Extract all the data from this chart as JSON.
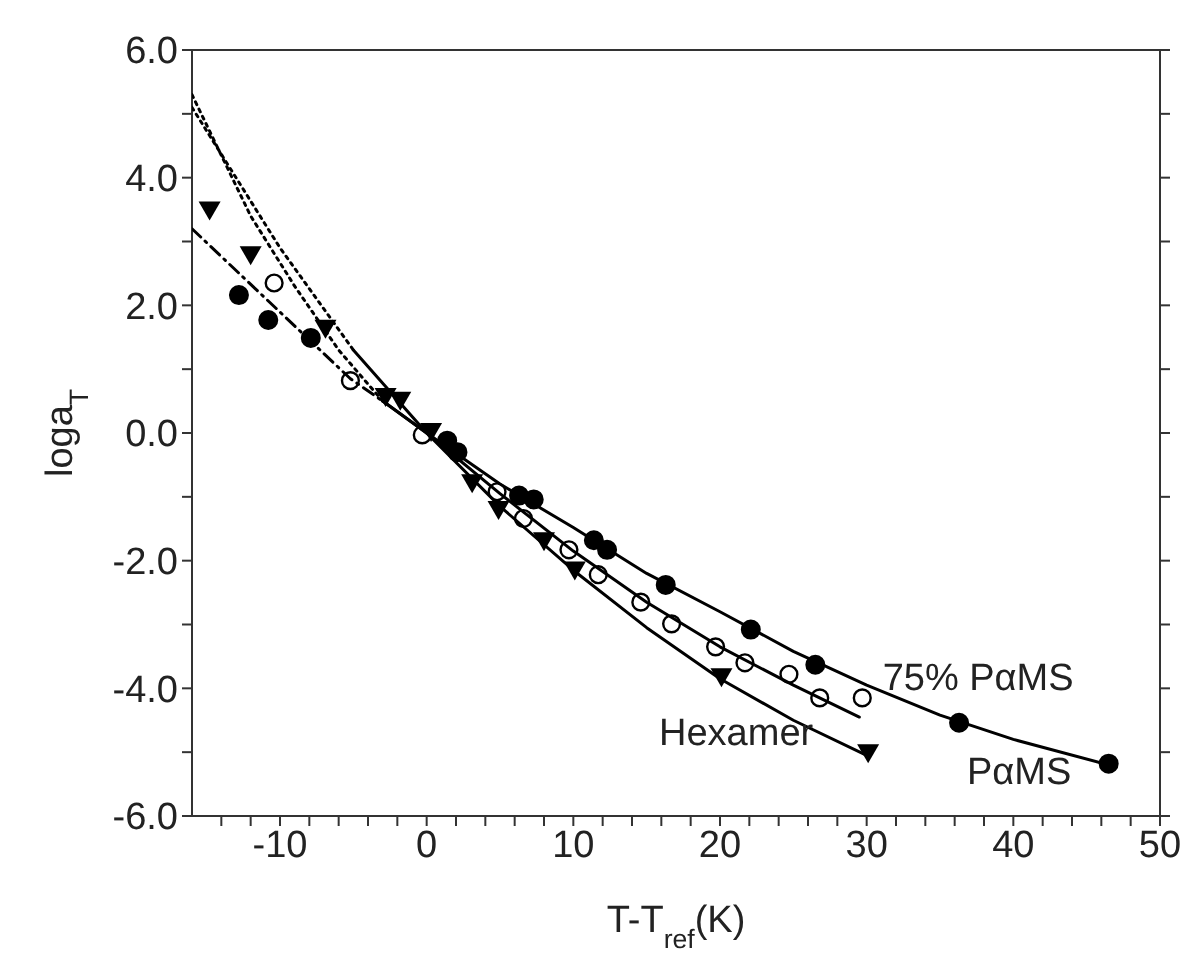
{
  "chart_data": {
    "type": "scatter",
    "xlabel": "T-T$_{ref}$(K)",
    "ylabel": "loga$_{T}$",
    "xlim": [
      -16,
      50
    ],
    "ylim": [
      -6,
      6
    ],
    "xticks": [
      {
        "value": -14,
        "label": null
      },
      {
        "value": -12,
        "label": null
      },
      -10,
      {
        "value": -8,
        "label": null
      },
      {
        "value": -6,
        "label": null
      },
      {
        "value": -4,
        "label": null
      },
      {
        "value": -2,
        "label": null
      },
      0,
      {
        "value": 2,
        "label": null
      },
      {
        "value": 4,
        "label": null
      },
      {
        "value": 6,
        "label": null
      },
      {
        "value": 8,
        "label": null
      },
      10,
      {
        "value": 12,
        "label": null
      },
      {
        "value": 14,
        "label": null
      },
      {
        "value": 16,
        "label": null
      },
      {
        "value": 18,
        "label": null
      },
      20,
      {
        "value": 22,
        "label": null
      },
      {
        "value": 24,
        "label": null
      },
      {
        "value": 26,
        "label": null
      },
      {
        "value": 28,
        "label": null
      },
      30,
      {
        "value": 32,
        "label": null
      },
      {
        "value": 34,
        "label": null
      },
      {
        "value": 36,
        "label": null
      },
      {
        "value": 38,
        "label": null
      },
      40,
      {
        "value": 42,
        "label": null
      },
      {
        "value": 44,
        "label": null
      },
      {
        "value": 46,
        "label": null
      },
      {
        "value": 48,
        "label": null
      },
      50
    ],
    "yticks": [
      {
        "value": -6,
        "label": "-6.0"
      },
      {
        "value": -5,
        "label": null
      },
      {
        "value": -4,
        "label": "-4.0"
      },
      {
        "value": -3,
        "label": null
      },
      {
        "value": -2,
        "label": "-2.0"
      },
      {
        "value": -1,
        "label": null
      },
      {
        "value": 0,
        "label": "0.0"
      },
      {
        "value": 1,
        "label": null
      },
      {
        "value": 2,
        "label": "2.0"
      },
      {
        "value": 3,
        "label": null
      },
      {
        "value": 4,
        "label": "4.0"
      },
      {
        "value": 5,
        "label": null
      },
      {
        "value": 6,
        "label": "6.0"
      }
    ],
    "grid": false,
    "legend": false,
    "series": [
      {
        "marker": "circle",
        "color": "#000000",
        "x": [
          -12.8,
          -10.8,
          -7.9,
          1.4,
          2.1,
          6.3,
          7.3,
          11.4,
          12.3,
          16.3,
          22.1,
          26.5,
          36.3,
          46.5
        ],
        "values": [
          2.16,
          1.77,
          1.49,
          -0.12,
          -0.3,
          -0.98,
          -1.04,
          -1.68,
          -1.83,
          -2.38,
          -3.08,
          -3.63,
          -4.54,
          -5.18
        ]
      },
      {
        "marker": "circle-open",
        "color": "#000000",
        "x": [
          -10.4,
          -5.2,
          -0.3,
          4.8,
          6.6,
          9.7,
          11.7,
          14.6,
          16.7,
          19.7,
          21.7,
          24.7,
          26.8,
          29.7
        ],
        "values": [
          2.35,
          0.82,
          -0.03,
          -0.92,
          -1.34,
          -1.83,
          -2.22,
          -2.65,
          -2.99,
          -3.35,
          -3.6,
          -3.78,
          -4.15,
          -4.15
        ]
      },
      {
        "marker": "triangle-down",
        "color": "#000000",
        "x": [
          -14.8,
          -12,
          -6.9,
          -2.8,
          -1.8,
          0.3,
          3.1,
          4.9,
          8,
          10.1,
          20.1,
          30.1
        ],
        "values": [
          3.5,
          2.8,
          1.65,
          0.58,
          0.52,
          0.03,
          -0.77,
          -1.19,
          -1.68,
          -2.14,
          -3.81,
          -5.0
        ]
      },
      {
        "type": "line",
        "line_style": "solid",
        "color": "#000000",
        "x": [
          -3,
          0,
          5,
          10,
          15,
          20,
          25,
          30,
          35,
          40,
          46.5
        ],
        "values": [
          0.5,
          0,
          -0.8,
          -1.48,
          -2.2,
          -2.8,
          -3.42,
          -3.95,
          -4.42,
          -4.8,
          -5.2
        ]
      },
      {
        "type": "line",
        "line_style": "dotted",
        "color": "#000000",
        "x": [
          -16,
          -12,
          -9,
          -6,
          -3
        ],
        "values": [
          5.3,
          3.4,
          2.3,
          1.3,
          0.5
        ]
      },
      {
        "type": "line",
        "line_style": "solid",
        "color": "#000000",
        "x": [
          -3,
          0,
          5,
          10,
          15,
          20,
          25,
          29.5
        ],
        "values": [
          0.5,
          0,
          -0.95,
          -1.85,
          -2.65,
          -3.35,
          -3.95,
          -4.45
        ]
      },
      {
        "type": "line",
        "line_style": "dashed",
        "color": "#000000",
        "x": [
          -16,
          -5.2,
          -3
        ],
        "values": [
          3.2,
          0.85,
          0.5
        ]
      },
      {
        "type": "line",
        "line_style": "solid",
        "color": "#000000",
        "x": [
          -5,
          0,
          5,
          10,
          15,
          20,
          25,
          30
        ],
        "values": [
          1.3,
          0,
          -1.15,
          -2.15,
          -3.05,
          -3.85,
          -4.5,
          -5.05
        ]
      },
      {
        "type": "line",
        "line_style": "dotted",
        "color": "#000000",
        "x": [
          -16,
          -10,
          -5
        ],
        "values": [
          5.1,
          2.9,
          1.3
        ]
      }
    ],
    "annotations": [
      "75% PαMS",
      "Hexamer",
      "PαMS"
    ]
  }
}
